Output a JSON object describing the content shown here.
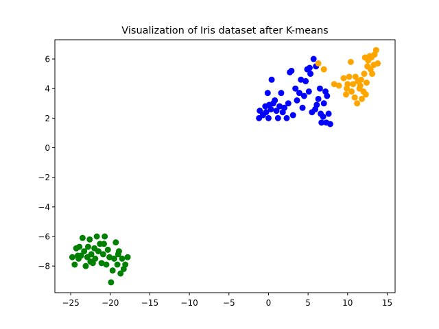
{
  "chart_data": {
    "type": "scatter",
    "title": "Visualization of Iris dataset after K-means",
    "xlabel": "",
    "ylabel": "",
    "xlim": [
      -27.0,
      16.0
    ],
    "ylim": [
      -9.8,
      7.3
    ],
    "xticks": [
      -25,
      -20,
      -15,
      -10,
      -5,
      0,
      5,
      10,
      15
    ],
    "xtick_labels": [
      "−25",
      "−20",
      "−15",
      "−10",
      "−5",
      "0",
      "5",
      "10",
      "15"
    ],
    "yticks": [
      -8,
      -6,
      -4,
      -2,
      0,
      2,
      4,
      6
    ],
    "ytick_labels": [
      "−8",
      "−6",
      "−4",
      "−2",
      "0",
      "2",
      "4",
      "6"
    ],
    "grid": false,
    "legend": "none",
    "series": [
      {
        "color": "#008000",
        "points": [
          [
            -24.8,
            -7.4
          ],
          [
            -24.5,
            -7.9
          ],
          [
            -24.3,
            -6.8
          ],
          [
            -24.0,
            -7.5
          ],
          [
            -23.9,
            -6.7
          ],
          [
            -23.7,
            -7.3
          ],
          [
            -23.5,
            -6.1
          ],
          [
            -23.3,
            -7.0
          ],
          [
            -23.1,
            -8.0
          ],
          [
            -22.9,
            -7.4
          ],
          [
            -22.8,
            -6.7
          ],
          [
            -22.6,
            -6.2
          ],
          [
            -22.4,
            -7.2
          ],
          [
            -22.2,
            -7.8
          ],
          [
            -22.0,
            -6.8
          ],
          [
            -21.9,
            -7.5
          ],
          [
            -21.7,
            -6.0
          ],
          [
            -21.5,
            -7.0
          ],
          [
            -21.3,
            -6.5
          ],
          [
            -21.1,
            -7.8
          ],
          [
            -20.9,
            -7.2
          ],
          [
            -20.7,
            -6.0
          ],
          [
            -20.5,
            -7.9
          ],
          [
            -20.3,
            -6.9
          ],
          [
            -20.1,
            -7.4
          ],
          [
            -19.9,
            -9.1
          ],
          [
            -19.7,
            -8.3
          ],
          [
            -19.5,
            -7.5
          ],
          [
            -19.3,
            -6.4
          ],
          [
            -19.1,
            -7.9
          ],
          [
            -18.9,
            -7.0
          ],
          [
            -18.7,
            -8.5
          ],
          [
            -18.5,
            -7.5
          ],
          [
            -18.3,
            -8.2
          ],
          [
            -18.1,
            -7.9
          ],
          [
            -17.8,
            -7.4
          ],
          [
            -24.1,
            -7.3
          ],
          [
            -22.5,
            -7.7
          ],
          [
            -20.8,
            -6.5
          ],
          [
            -19.0,
            -7.2
          ]
        ]
      },
      {
        "color": "#0000ff",
        "points": [
          [
            -1.2,
            2.0
          ],
          [
            -1.1,
            2.5
          ],
          [
            -0.7,
            2.2
          ],
          [
            -0.4,
            2.8
          ],
          [
            -0.3,
            2.4
          ],
          [
            -0.1,
            3.7
          ],
          [
            0.0,
            2.0
          ],
          [
            0.1,
            2.9
          ],
          [
            0.3,
            2.6
          ],
          [
            0.4,
            4.6
          ],
          [
            0.6,
            3.0
          ],
          [
            0.8,
            3.2
          ],
          [
            1.0,
            2.5
          ],
          [
            1.2,
            2.0
          ],
          [
            1.4,
            2.8
          ],
          [
            1.6,
            3.7
          ],
          [
            1.8,
            2.4
          ],
          [
            2.0,
            2.7
          ],
          [
            2.3,
            2.0
          ],
          [
            2.5,
            3.0
          ],
          [
            2.7,
            5.1
          ],
          [
            2.9,
            5.2
          ],
          [
            3.1,
            2.2
          ],
          [
            3.4,
            4.0
          ],
          [
            3.6,
            3.2
          ],
          [
            3.9,
            3.7
          ],
          [
            4.1,
            4.6
          ],
          [
            4.3,
            2.7
          ],
          [
            4.5,
            3.5
          ],
          [
            4.7,
            4.5
          ],
          [
            4.9,
            5.3
          ],
          [
            5.1,
            3.8
          ],
          [
            5.3,
            5.0
          ],
          [
            5.5,
            2.4
          ],
          [
            5.7,
            6.0
          ],
          [
            5.9,
            2.6
          ],
          [
            6.1,
            2.9
          ],
          [
            6.3,
            3.3
          ],
          [
            6.5,
            4.0
          ],
          [
            6.7,
            1.7
          ],
          [
            6.9,
            2.1
          ],
          [
            7.0,
            3.0
          ],
          [
            7.2,
            3.8
          ],
          [
            7.4,
            3.5
          ],
          [
            7.6,
            2.3
          ],
          [
            7.8,
            1.6
          ],
          [
            5.2,
            5.4
          ],
          [
            6.0,
            5.5
          ],
          [
            6.6,
            2.3
          ],
          [
            7.3,
            1.7
          ]
        ]
      },
      {
        "color": "#ffa500",
        "points": [
          [
            6.3,
            5.7
          ],
          [
            7.0,
            5.3
          ],
          [
            8.3,
            4.3
          ],
          [
            8.9,
            4.2
          ],
          [
            9.5,
            4.7
          ],
          [
            9.8,
            3.6
          ],
          [
            9.9,
            4.0
          ],
          [
            10.2,
            4.8
          ],
          [
            10.4,
            5.8
          ],
          [
            10.5,
            3.8
          ],
          [
            10.7,
            4.3
          ],
          [
            10.9,
            3.4
          ],
          [
            11.0,
            4.8
          ],
          [
            11.2,
            3.0
          ],
          [
            11.3,
            4.5
          ],
          [
            11.5,
            4.0
          ],
          [
            11.7,
            4.6
          ],
          [
            11.8,
            3.3
          ],
          [
            12.0,
            3.8
          ],
          [
            12.1,
            5.0
          ],
          [
            12.2,
            6.1
          ],
          [
            12.3,
            3.6
          ],
          [
            12.5,
            5.5
          ],
          [
            12.6,
            5.9
          ],
          [
            12.8,
            6.2
          ],
          [
            13.0,
            6.1
          ],
          [
            13.1,
            5.0
          ],
          [
            13.3,
            5.6
          ],
          [
            13.4,
            6.3
          ],
          [
            13.6,
            6.6
          ],
          [
            13.8,
            5.7
          ],
          [
            12.4,
            4.4
          ],
          [
            11.6,
            4.2
          ],
          [
            10.0,
            4.3
          ],
          [
            12.9,
            5.3
          ]
        ]
      }
    ]
  }
}
